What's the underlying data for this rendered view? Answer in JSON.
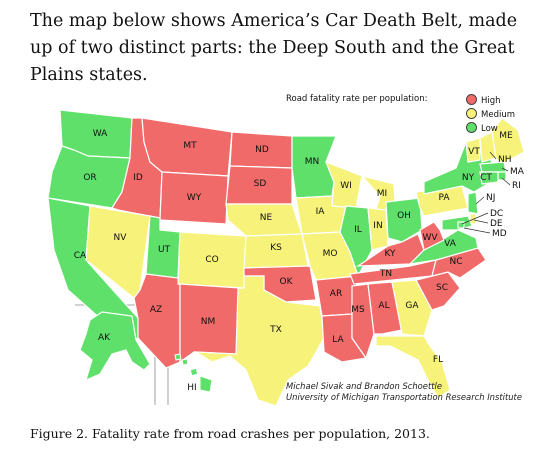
{
  "intro_text": "The map below shows America’s Car Death Belt, made up of two distinct parts: the Deep South and the Great Plains states.",
  "legend": {
    "title": "Road fatality rate per population:",
    "items": [
      {
        "label": "High",
        "color": "#f06a6a"
      },
      {
        "label": "Medium",
        "color": "#f7f27a"
      },
      {
        "label": "Low",
        "color": "#5fe06a"
      }
    ]
  },
  "categories": {
    "high": "#f06a6a",
    "medium": "#f7f27a",
    "low": "#5fe06a"
  },
  "states": [
    {
      "code": "WA",
      "rate": "low"
    },
    {
      "code": "OR",
      "rate": "low"
    },
    {
      "code": "CA",
      "rate": "low"
    },
    {
      "code": "ID",
      "rate": "high"
    },
    {
      "code": "NV",
      "rate": "medium"
    },
    {
      "code": "AZ",
      "rate": "high"
    },
    {
      "code": "MT",
      "rate": "high"
    },
    {
      "code": "WY",
      "rate": "high"
    },
    {
      "code": "UT",
      "rate": "low"
    },
    {
      "code": "CO",
      "rate": "medium"
    },
    {
      "code": "NM",
      "rate": "high"
    },
    {
      "code": "ND",
      "rate": "high"
    },
    {
      "code": "SD",
      "rate": "high"
    },
    {
      "code": "NE",
      "rate": "medium"
    },
    {
      "code": "KS",
      "rate": "medium"
    },
    {
      "code": "OK",
      "rate": "high"
    },
    {
      "code": "TX",
      "rate": "medium"
    },
    {
      "code": "MN",
      "rate": "low"
    },
    {
      "code": "IA",
      "rate": "medium"
    },
    {
      "code": "MO",
      "rate": "medium"
    },
    {
      "code": "AR",
      "rate": "high"
    },
    {
      "code": "LA",
      "rate": "high"
    },
    {
      "code": "WI",
      "rate": "medium"
    },
    {
      "code": "IL",
      "rate": "low"
    },
    {
      "code": "MI",
      "rate": "medium"
    },
    {
      "code": "IN",
      "rate": "medium"
    },
    {
      "code": "OH",
      "rate": "low"
    },
    {
      "code": "KY",
      "rate": "high"
    },
    {
      "code": "TN",
      "rate": "high"
    },
    {
      "code": "MS",
      "rate": "high"
    },
    {
      "code": "AL",
      "rate": "high"
    },
    {
      "code": "GA",
      "rate": "medium"
    },
    {
      "code": "FL",
      "rate": "medium"
    },
    {
      "code": "SC",
      "rate": "high"
    },
    {
      "code": "NC",
      "rate": "high"
    },
    {
      "code": "VA",
      "rate": "low"
    },
    {
      "code": "WV",
      "rate": "high"
    },
    {
      "code": "PA",
      "rate": "medium"
    },
    {
      "code": "NY",
      "rate": "low"
    },
    {
      "code": "VT",
      "rate": "medium"
    },
    {
      "code": "NH",
      "rate": "medium"
    },
    {
      "code": "ME",
      "rate": "medium"
    },
    {
      "code": "MA",
      "rate": "low"
    },
    {
      "code": "RI",
      "rate": "low"
    },
    {
      "code": "CT",
      "rate": "low"
    },
    {
      "code": "NJ",
      "rate": "low"
    },
    {
      "code": "DE",
      "rate": "medium"
    },
    {
      "code": "MD",
      "rate": "low"
    },
    {
      "code": "DC",
      "rate": "low"
    },
    {
      "code": "AK",
      "rate": "low"
    },
    {
      "code": "HI",
      "rate": "low"
    }
  ],
  "credit": {
    "line1": "Michael Sivak and Brandon Schoettle",
    "line2": "University of Michigan Transportation Research Institute"
  },
  "caption": "Figure 2.  Fatality rate from road crashes per population, 2013."
}
